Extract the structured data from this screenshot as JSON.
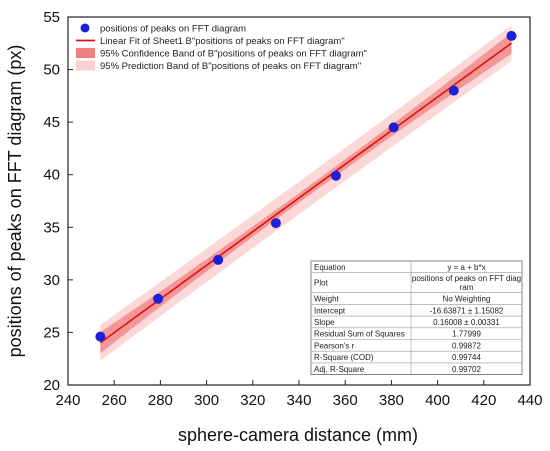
{
  "chart_data": {
    "type": "scatter",
    "xlabel": "sphere-camera distance (mm)",
    "ylabel": "positions of peaks on FFT diagram (px)",
    "xlim": [
      240,
      440
    ],
    "ylim": [
      20,
      55
    ],
    "xticks": [
      "240",
      "260",
      "280",
      "300",
      "320",
      "340",
      "360",
      "380",
      "400",
      "420",
      "440"
    ],
    "yticks": [
      "20",
      "25",
      "30",
      "35",
      "40",
      "45",
      "50",
      "55"
    ],
    "series": [
      {
        "name": "positions of peaks on FFT diagram",
        "kind": "scatter",
        "color": "#1f1fd6",
        "points": [
          {
            "x": 254,
            "y": 24.6
          },
          {
            "x": 279,
            "y": 28.2
          },
          {
            "x": 305,
            "y": 31.9
          },
          {
            "x": 330,
            "y": 35.4
          },
          {
            "x": 356,
            "y": 39.9
          },
          {
            "x": 381,
            "y": 44.5
          },
          {
            "x": 407,
            "y": 48.0
          },
          {
            "x": 432,
            "y": 53.2
          }
        ]
      }
    ],
    "fit": {
      "intercept": -16.63871,
      "slope": 0.16008,
      "x_range": [
        254,
        432
      ],
      "line_color": "#e01010",
      "confidence_color": "#f08080",
      "prediction_color": "#fbd0d0"
    },
    "legend": {
      "position": "top-left",
      "items": [
        {
          "label": "positions of peaks on FFT diagram",
          "kind": "marker",
          "color": "#1f1fd6"
        },
        {
          "label": "Linear Fit of Sheet1 B\"positions of peaks on FFT diagram\"",
          "kind": "line",
          "color": "#e01010"
        },
        {
          "label": "95% Confidence Band of B\"positions of peaks on FFT diagram\"",
          "kind": "band",
          "color": "#f08080"
        },
        {
          "label": "95% Prediction Band of B\"positions of peaks on FFT diagram\"",
          "kind": "band",
          "color": "#fbd0d0"
        }
      ]
    },
    "stats_table": [
      [
        "Equation",
        "y = a + b*x"
      ],
      [
        "Plot",
        "positions of peaks on FFT diag\nram"
      ],
      [
        "Weight",
        "No Weighting"
      ],
      [
        "Intercept",
        "-16.63871 ± 1.15082"
      ],
      [
        "Slope",
        "0.16008 ± 0.00331"
      ],
      [
        "Residual Sum of Squares",
        "1.77999"
      ],
      [
        "Pearson's r",
        "0.99872"
      ],
      [
        "R-Square (COD)",
        "0.99744"
      ],
      [
        "Adj. R-Square",
        "0.99702"
      ]
    ]
  }
}
